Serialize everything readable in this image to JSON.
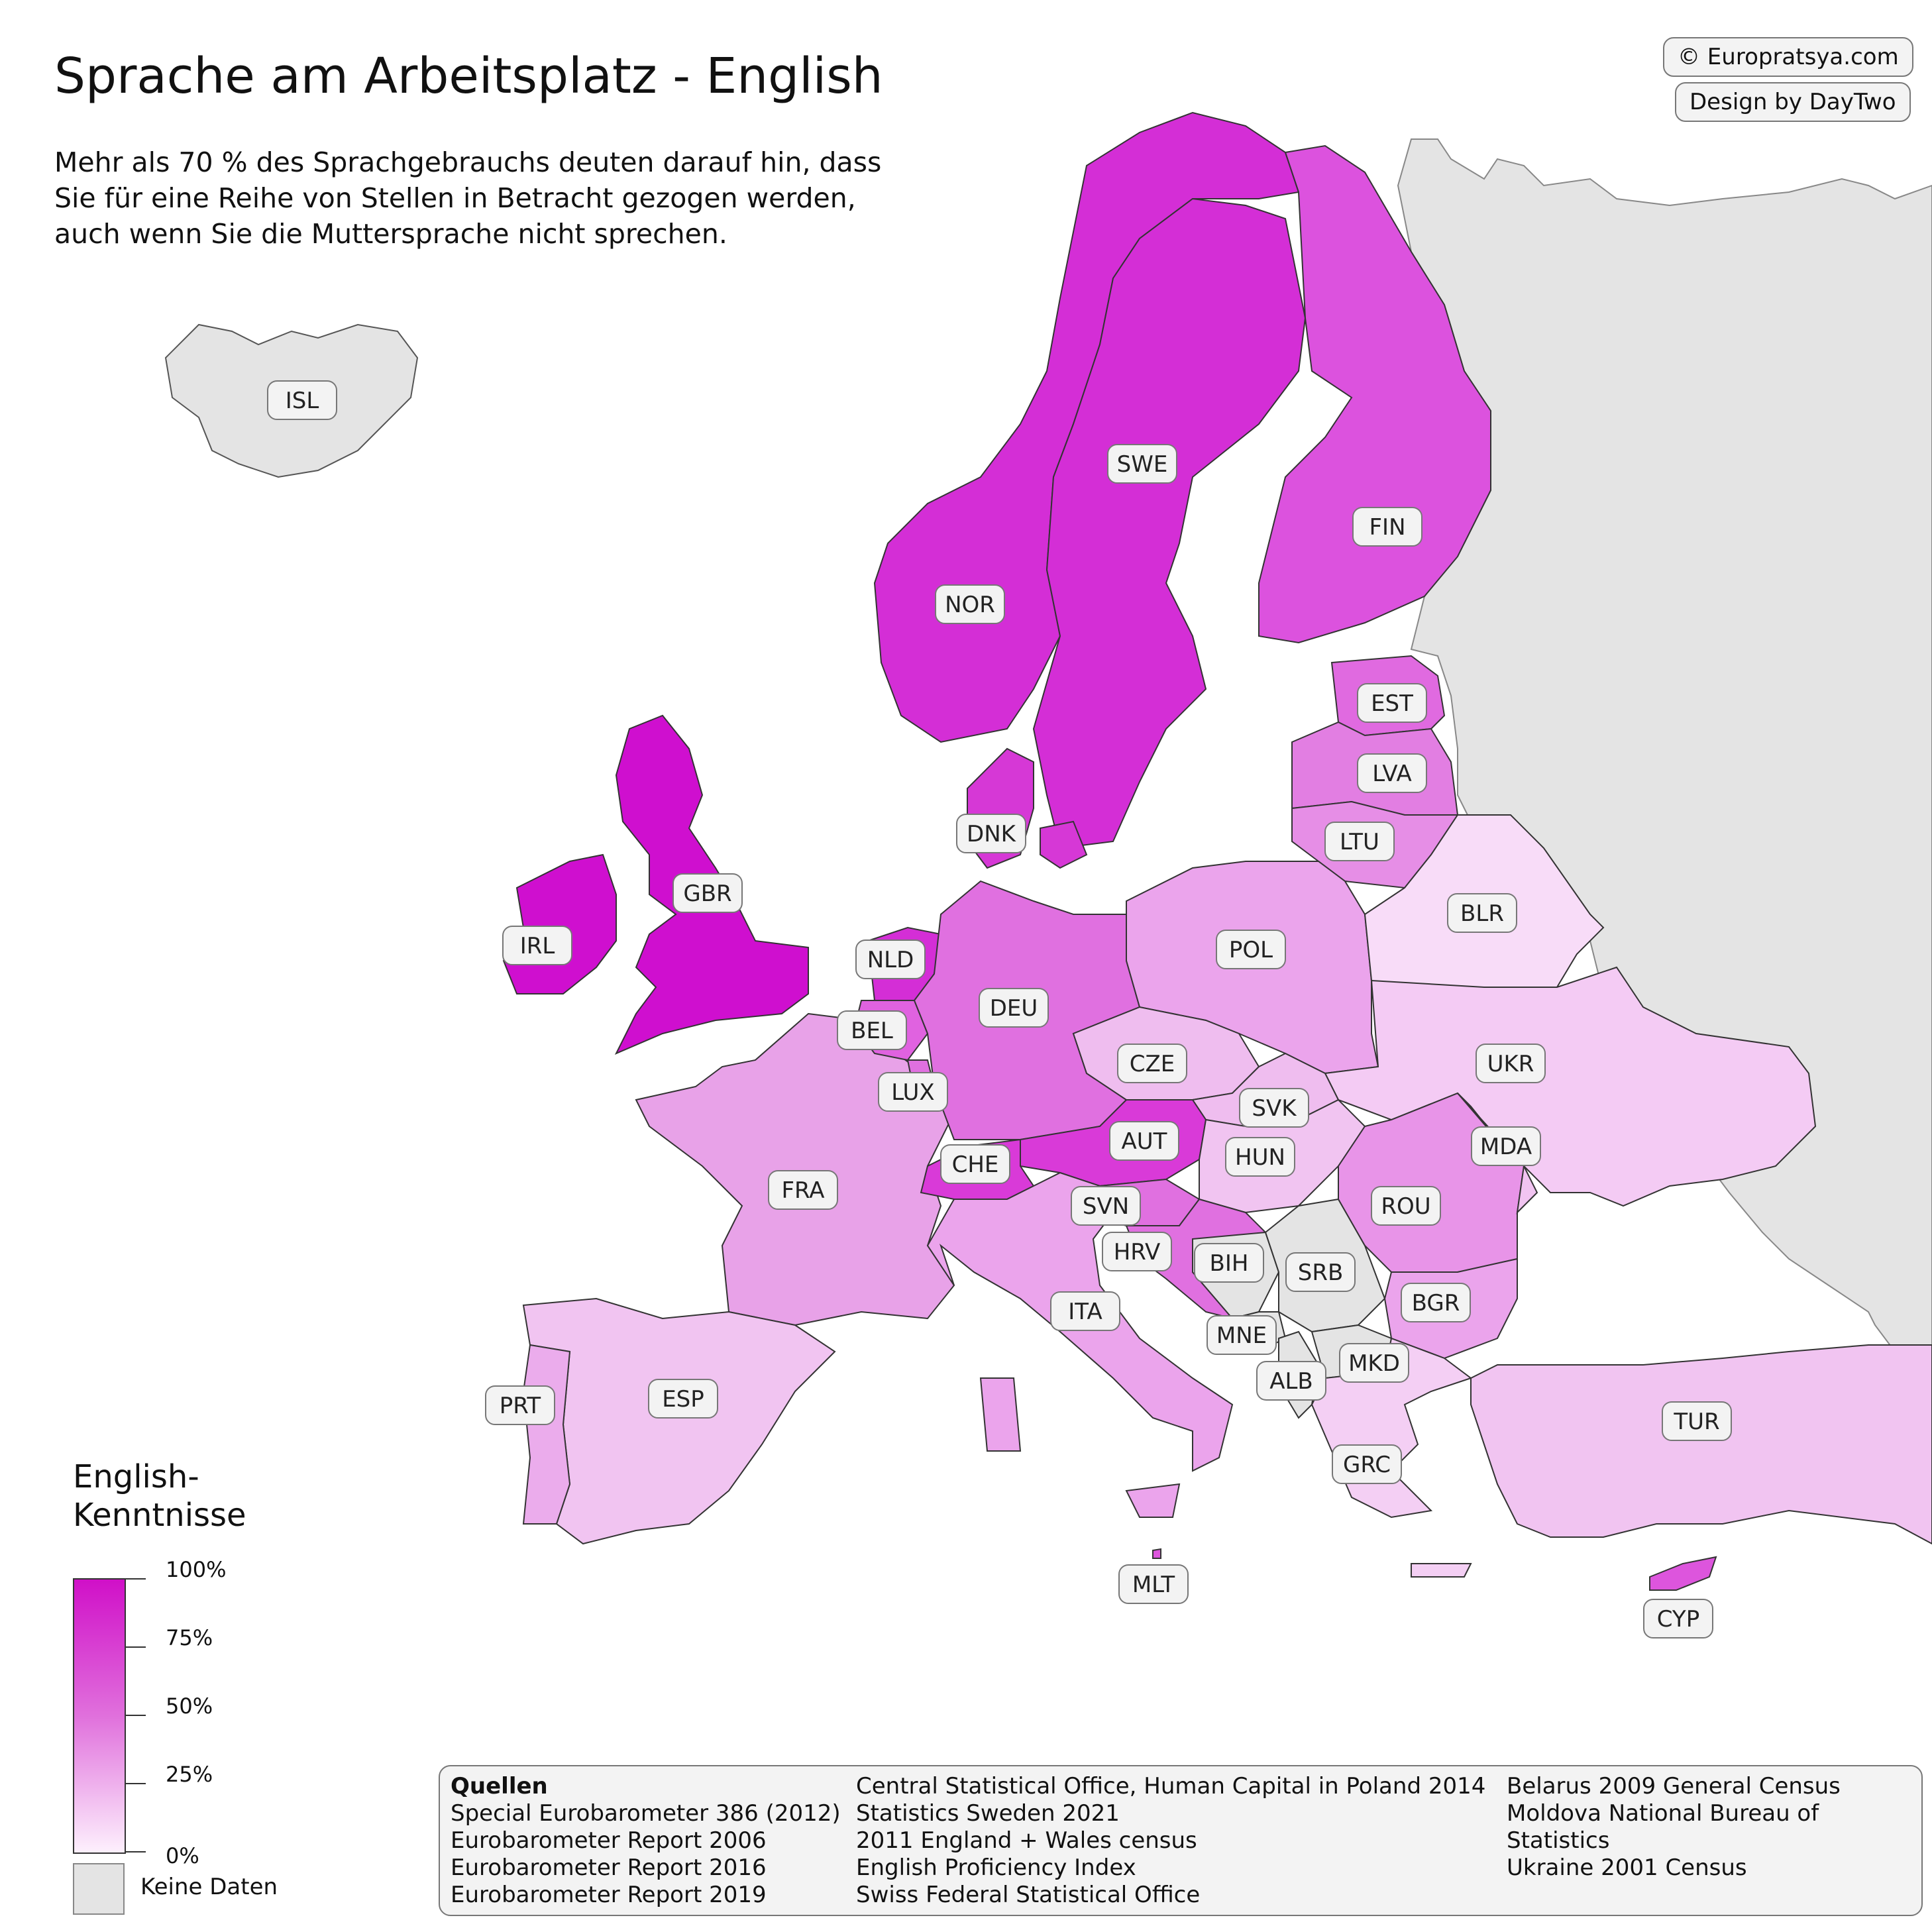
{
  "title": "Sprache am Arbeitsplatz - English",
  "subtitle": "Mehr als 70 % des Sprachgebrauchs deuten darauf hin, dass Sie für eine Reihe von Stellen in Betracht gezogen werden, auch wenn Sie die Muttersprache nicht sprechen.",
  "credits": {
    "site": "© Europratsya.com",
    "design": "Design by DayTwo"
  },
  "legend": {
    "title_line1": "English-",
    "title_line2": "Kenntnisse",
    "ticks": [
      "100%",
      "75%",
      "50%",
      "25%",
      "0%"
    ],
    "no_data": "Keine Daten",
    "color_high": "#d010c8",
    "color_low": "#fdf0fd",
    "color_nodata": "#e4e4e4"
  },
  "sources": {
    "heading": "Quellen",
    "col1": [
      "Special Eurobarometer 386 (2012)",
      "Eurobarometer Report 2006",
      "Eurobarometer Report 2016",
      "Eurobarometer Report 2019"
    ],
    "col2": [
      "Central Statistical Office, Human Capital in Poland 2014",
      "Statistics Sweden 2021",
      "2011 England + Wales census",
      "English Proficiency Index",
      "Swiss Federal Statistical Office"
    ],
    "col3": [
      "Belarus 2009 General Census",
      "Moldova National Bureau of Statistics",
      "Ukraine 2001 Census"
    ]
  },
  "countries": [
    {
      "code": "ISL",
      "color": "#e4e4e4"
    },
    {
      "code": "NOR",
      "color": "#d42ed6"
    },
    {
      "code": "SWE",
      "color": "#d42ed6"
    },
    {
      "code": "FIN",
      "color": "#dc52de"
    },
    {
      "code": "EST",
      "color": "#e06ae0"
    },
    {
      "code": "LVA",
      "color": "#e27ee2"
    },
    {
      "code": "LTU",
      "color": "#e68ee6"
    },
    {
      "code": "DNK",
      "color": "#d638d6"
    },
    {
      "code": "GBR",
      "color": "#cf0fcf"
    },
    {
      "code": "IRL",
      "color": "#cf0fcf"
    },
    {
      "code": "NLD",
      "color": "#d42ed6"
    },
    {
      "code": "BEL",
      "color": "#e062e0"
    },
    {
      "code": "LUX",
      "color": "#e070e0"
    },
    {
      "code": "DEU",
      "color": "#e070e0"
    },
    {
      "code": "POL",
      "color": "#eba4ec"
    },
    {
      "code": "BLR",
      "color": "#f8dcf8"
    },
    {
      "code": "UKR",
      "color": "#f4cbf4"
    },
    {
      "code": "CZE",
      "color": "#efbdef"
    },
    {
      "code": "SVK",
      "color": "#efbdef"
    },
    {
      "code": "AUT",
      "color": "#d93ad8"
    },
    {
      "code": "HUN",
      "color": "#f1c4f1"
    },
    {
      "code": "CHE",
      "color": "#d93ad8"
    },
    {
      "code": "FRA",
      "color": "#e8a2e8"
    },
    {
      "code": "SVN",
      "color": "#e070e0"
    },
    {
      "code": "HRV",
      "color": "#e070e0"
    },
    {
      "code": "BIH",
      "color": "#e4e4e4"
    },
    {
      "code": "SRB",
      "color": "#e4e4e4"
    },
    {
      "code": "MNE",
      "color": "#e4e4e4"
    },
    {
      "code": "ALB",
      "color": "#e4e4e4"
    },
    {
      "code": "MKD",
      "color": "#e4e4e4"
    },
    {
      "code": "ROU",
      "color": "#e894e8"
    },
    {
      "code": "MDA",
      "color": "#f1c4f1"
    },
    {
      "code": "BGR",
      "color": "#eba4ec"
    },
    {
      "code": "ITA",
      "color": "#eba4ec"
    },
    {
      "code": "ESP",
      "color": "#f1c4f1"
    },
    {
      "code": "PRT",
      "color": "#ebacec"
    },
    {
      "code": "GRC",
      "color": "#f4cff4"
    },
    {
      "code": "TUR",
      "color": "#f1c4f1"
    },
    {
      "code": "CYP",
      "color": "#dd55dd"
    },
    {
      "code": "MLT",
      "color": "#dd55dd"
    }
  ]
}
